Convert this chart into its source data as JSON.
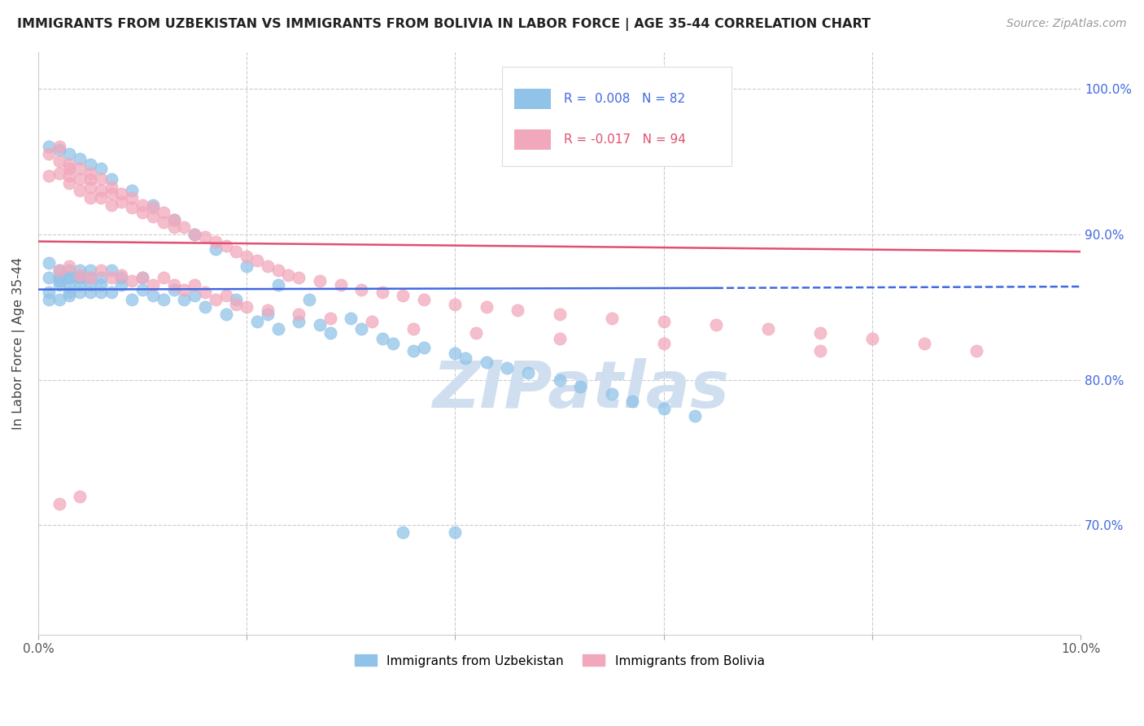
{
  "title": "IMMIGRANTS FROM UZBEKISTAN VS IMMIGRANTS FROM BOLIVIA IN LABOR FORCE | AGE 35-44 CORRELATION CHART",
  "source": "Source: ZipAtlas.com",
  "ylabel": "In Labor Force | Age 35-44",
  "xlim": [
    0.0,
    0.1
  ],
  "ylim": [
    0.625,
    1.025
  ],
  "yticks": [
    0.7,
    0.8,
    0.9,
    1.0
  ],
  "ytick_labels": [
    "70.0%",
    "80.0%",
    "90.0%",
    "100.0%"
  ],
  "xticks": [
    0.0,
    0.02,
    0.04,
    0.06,
    0.08,
    0.1
  ],
  "xtick_labels": [
    "0.0%",
    "",
    "",
    "",
    "",
    "10.0%"
  ],
  "color_uzbekistan": "#91C3E8",
  "color_bolivia": "#F2A8BC",
  "trendline_uzbekistan_color": "#4169E1",
  "trendline_bolivia_color": "#E05070",
  "watermark_color": "#D0DFF0",
  "background_color": "#FFFFFF",
  "uzbekistan_x": [
    0.001,
    0.001,
    0.001,
    0.001,
    0.002,
    0.002,
    0.002,
    0.002,
    0.002,
    0.003,
    0.003,
    0.003,
    0.003,
    0.003,
    0.003,
    0.004,
    0.004,
    0.004,
    0.004,
    0.004,
    0.005,
    0.005,
    0.005,
    0.005,
    0.006,
    0.006,
    0.006,
    0.007,
    0.007,
    0.008,
    0.008,
    0.009,
    0.01,
    0.01,
    0.011,
    0.012,
    0.013,
    0.014,
    0.015,
    0.016,
    0.018,
    0.019,
    0.021,
    0.022,
    0.023,
    0.025,
    0.027,
    0.028,
    0.031,
    0.033,
    0.034,
    0.036,
    0.037,
    0.04,
    0.041,
    0.043,
    0.045,
    0.047,
    0.05,
    0.052,
    0.055,
    0.057,
    0.06,
    0.063,
    0.001,
    0.002,
    0.003,
    0.004,
    0.005,
    0.006,
    0.007,
    0.009,
    0.011,
    0.013,
    0.015,
    0.017,
    0.02,
    0.023,
    0.026,
    0.03,
    0.035,
    0.04
  ],
  "uzbekistan_y": [
    0.87,
    0.88,
    0.86,
    0.855,
    0.875,
    0.865,
    0.87,
    0.855,
    0.868,
    0.87,
    0.86,
    0.875,
    0.858,
    0.865,
    0.87,
    0.875,
    0.87,
    0.865,
    0.86,
    0.87,
    0.875,
    0.87,
    0.86,
    0.865,
    0.87,
    0.86,
    0.865,
    0.875,
    0.86,
    0.87,
    0.865,
    0.855,
    0.862,
    0.87,
    0.858,
    0.855,
    0.862,
    0.855,
    0.858,
    0.85,
    0.845,
    0.855,
    0.84,
    0.845,
    0.835,
    0.84,
    0.838,
    0.832,
    0.835,
    0.828,
    0.825,
    0.82,
    0.822,
    0.818,
    0.815,
    0.812,
    0.808,
    0.805,
    0.8,
    0.795,
    0.79,
    0.785,
    0.78,
    0.775,
    0.96,
    0.958,
    0.955,
    0.952,
    0.948,
    0.945,
    0.938,
    0.93,
    0.92,
    0.91,
    0.9,
    0.89,
    0.878,
    0.865,
    0.855,
    0.842,
    0.695,
    0.695
  ],
  "bolivia_x": [
    0.001,
    0.001,
    0.002,
    0.002,
    0.002,
    0.003,
    0.003,
    0.003,
    0.003,
    0.004,
    0.004,
    0.004,
    0.005,
    0.005,
    0.005,
    0.005,
    0.006,
    0.006,
    0.006,
    0.007,
    0.007,
    0.007,
    0.008,
    0.008,
    0.009,
    0.009,
    0.01,
    0.01,
    0.011,
    0.011,
    0.012,
    0.012,
    0.013,
    0.013,
    0.014,
    0.015,
    0.016,
    0.017,
    0.018,
    0.019,
    0.02,
    0.021,
    0.022,
    0.023,
    0.024,
    0.025,
    0.027,
    0.029,
    0.031,
    0.033,
    0.035,
    0.037,
    0.04,
    0.043,
    0.046,
    0.05,
    0.055,
    0.06,
    0.065,
    0.07,
    0.075,
    0.08,
    0.085,
    0.09,
    0.002,
    0.003,
    0.004,
    0.005,
    0.006,
    0.007,
    0.008,
    0.009,
    0.01,
    0.011,
    0.012,
    0.013,
    0.014,
    0.015,
    0.016,
    0.017,
    0.018,
    0.019,
    0.02,
    0.022,
    0.025,
    0.028,
    0.032,
    0.036,
    0.042,
    0.05,
    0.06,
    0.075,
    0.002,
    0.004
  ],
  "bolivia_y": [
    0.94,
    0.955,
    0.96,
    0.95,
    0.942,
    0.948,
    0.945,
    0.94,
    0.935,
    0.945,
    0.938,
    0.93,
    0.942,
    0.938,
    0.932,
    0.925,
    0.938,
    0.93,
    0.925,
    0.932,
    0.928,
    0.92,
    0.928,
    0.922,
    0.925,
    0.918,
    0.92,
    0.915,
    0.918,
    0.912,
    0.915,
    0.908,
    0.91,
    0.905,
    0.905,
    0.9,
    0.898,
    0.895,
    0.892,
    0.888,
    0.885,
    0.882,
    0.878,
    0.875,
    0.872,
    0.87,
    0.868,
    0.865,
    0.862,
    0.86,
    0.858,
    0.855,
    0.852,
    0.85,
    0.848,
    0.845,
    0.842,
    0.84,
    0.838,
    0.835,
    0.832,
    0.828,
    0.825,
    0.82,
    0.875,
    0.878,
    0.872,
    0.87,
    0.875,
    0.87,
    0.872,
    0.868,
    0.87,
    0.865,
    0.87,
    0.865,
    0.862,
    0.865,
    0.86,
    0.855,
    0.858,
    0.852,
    0.85,
    0.848,
    0.845,
    0.842,
    0.84,
    0.835,
    0.832,
    0.828,
    0.825,
    0.82,
    0.715,
    0.72
  ],
  "trendline_uzb_x0": 0.0,
  "trendline_uzb_x1": 0.065,
  "trendline_uzb_x2": 0.1,
  "trendline_uzb_y0": 0.862,
  "trendline_uzb_y1": 0.863,
  "trendline_uzb_y2": 0.864,
  "trendline_bol_x0": 0.0,
  "trendline_bol_x1": 0.1,
  "trendline_bol_y0": 0.895,
  "trendline_bol_y1": 0.888
}
